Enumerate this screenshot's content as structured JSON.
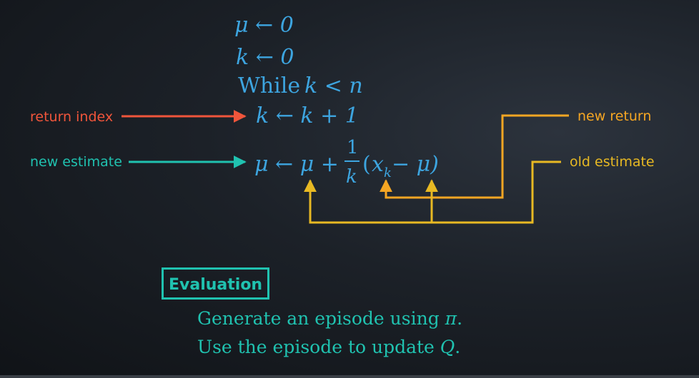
{
  "colors": {
    "blue": "#3da5e0",
    "teal": "#20c2b0",
    "red": "#f0553b",
    "orange": "#f6a623",
    "gold": "#e8b923",
    "text": "#bfe8e0"
  },
  "algorithm": {
    "line1": "μ ← 0",
    "line2": "k ← 0",
    "line3_word": "While",
    "line3_cond": "k < n",
    "line4": "k ← k + 1",
    "line5_prefix": "μ ← μ +",
    "line5_frac_num": "1",
    "line5_frac_den": "k",
    "line5_suffix_open": "(",
    "line5_xk": "x",
    "line5_sub": "k",
    "line5_suffix_rest": " − μ)"
  },
  "annotations": {
    "return_index": "return index",
    "new_estimate": "new estimate",
    "new_return": "new return",
    "old_estimate": "old estimate"
  },
  "evaluation": {
    "label": "Evaluation",
    "step1_text": "Generate an episode using ",
    "step1_sym": "π",
    "step1_end": ".",
    "step2_text": "Use the episode to update ",
    "step2_sym": "Q",
    "step2_end": "."
  }
}
